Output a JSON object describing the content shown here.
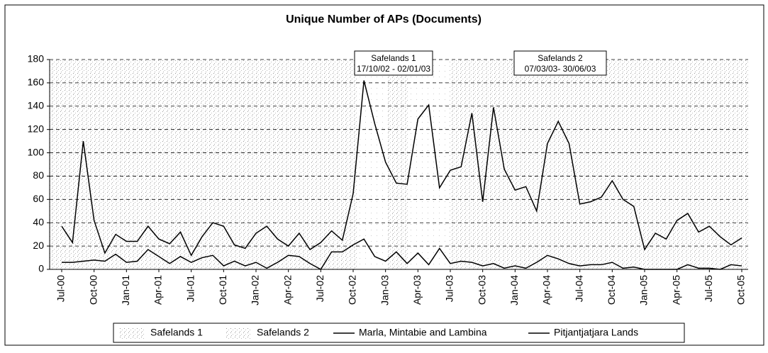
{
  "chart_data": {
    "type": "line",
    "title": "Unique Number of APs (Documents)",
    "categories": [
      "Jul-00",
      null,
      null,
      "Oct-00",
      null,
      null,
      "Jan-01",
      null,
      null,
      "Apr-01",
      null,
      null,
      "Jul-01",
      null,
      null,
      "Oct-01",
      null,
      null,
      "Jan-02",
      null,
      null,
      "Apr-02",
      null,
      null,
      "Jul-02",
      null,
      null,
      "Oct-02",
      null,
      null,
      "Jan-03",
      null,
      null,
      "Apr-03",
      null,
      null,
      "Jul-03",
      null,
      null,
      "Oct-03",
      null,
      null,
      "Jan-04",
      null,
      null,
      "Apr-04",
      null,
      null,
      "Jul-04",
      null,
      null,
      "Oct-04",
      null,
      null,
      "Jan-05",
      null,
      null,
      "Apr-05",
      null,
      null,
      "Jul-05",
      null,
      null,
      "Oct-05"
    ],
    "series": [
      {
        "name": "Marla, Mintabie and Lambina",
        "color": "#000000",
        "values": [
          6,
          6,
          7,
          8,
          7,
          13,
          6,
          7,
          17,
          11,
          5,
          11,
          6,
          10,
          12,
          3,
          7,
          3,
          6,
          1,
          6,
          12,
          11,
          5,
          0,
          15,
          15,
          21,
          26,
          11,
          7,
          15,
          5,
          14,
          4,
          18,
          5,
          7,
          6,
          3,
          5,
          1,
          3,
          1,
          6,
          12,
          9,
          5,
          3,
          4,
          4,
          6,
          1,
          2,
          0,
          0,
          0,
          0,
          4,
          1,
          1,
          0,
          4,
          3
        ]
      },
      {
        "name": "Pitjantjatjara Lands",
        "color": "#000000",
        "values": [
          37,
          23,
          110,
          42,
          14,
          30,
          24,
          24,
          37,
          26,
          22,
          32,
          12,
          28,
          40,
          37,
          21,
          18,
          31,
          37,
          26,
          20,
          31,
          17,
          23,
          33,
          25,
          65,
          162,
          125,
          92,
          74,
          73,
          129,
          141,
          70,
          85,
          88,
          134,
          58,
          139,
          86,
          68,
          71,
          50,
          108,
          127,
          108,
          56,
          58,
          62,
          76,
          60,
          54,
          17,
          31,
          26,
          42,
          48,
          32,
          37,
          28,
          21,
          27
        ]
      }
    ],
    "annotations": [
      {
        "title": "Safelands 1",
        "text": "17/10/02 - 02/01/03"
      },
      {
        "title": "Safelands 2",
        "text": "07/03/03- 30/06/03"
      }
    ],
    "ylim": [
      0,
      180
    ],
    "yticks": [
      0,
      20,
      40,
      60,
      80,
      100,
      120,
      140,
      160,
      180
    ],
    "grid": true
  }
}
